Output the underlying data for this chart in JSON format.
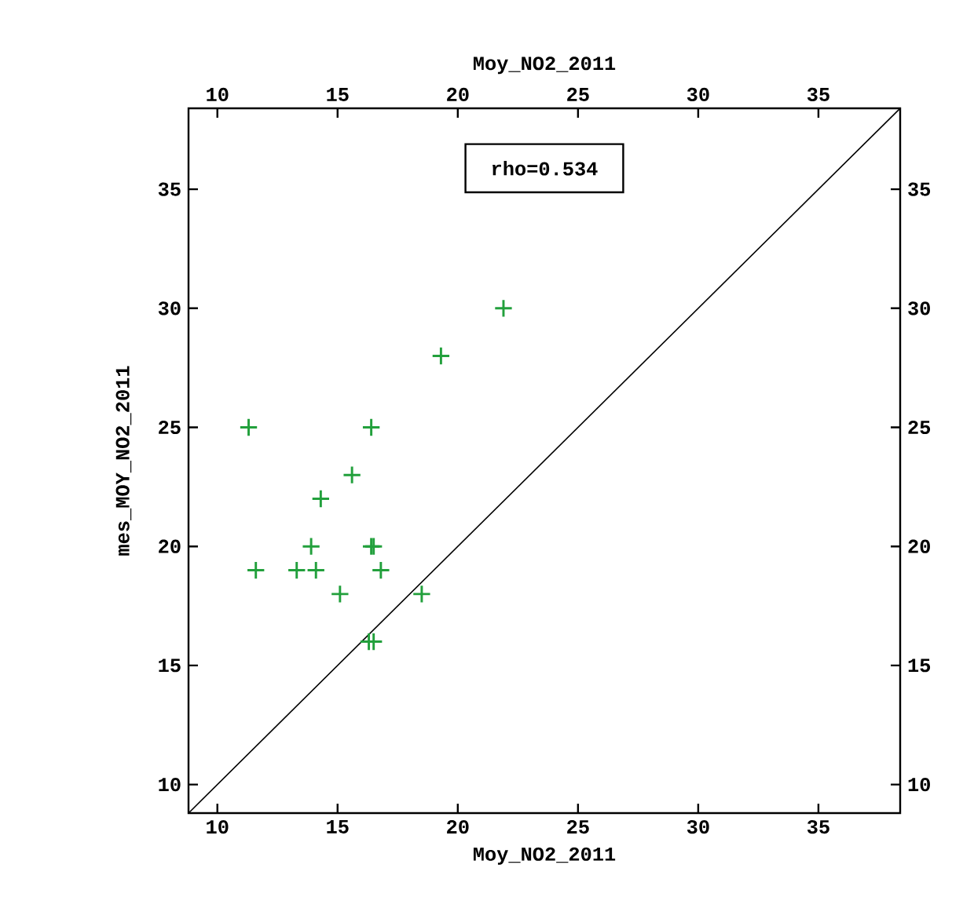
{
  "chart_data": {
    "type": "scatter",
    "xlabel": "Moy_NO2_2011",
    "x2label": "Moy_NO2_2011",
    "ylabel": "mes_MOY_NO2_2011",
    "annotations": [
      "rho=0.534"
    ],
    "xlim": [
      8.8,
      38.4
    ],
    "ylim": [
      8.8,
      38.4
    ],
    "x2lim": [
      8.8,
      38.4
    ],
    "y2lim": [
      8.8,
      38.4
    ],
    "xticks": [
      10,
      15,
      20,
      25,
      30,
      35
    ],
    "yticks": [
      10,
      15,
      20,
      25,
      30,
      35
    ],
    "x2ticks": [
      10,
      15,
      20,
      25,
      30,
      35
    ],
    "y2ticks": [
      10,
      15,
      20,
      25,
      30,
      35
    ],
    "grid": false,
    "marker": "cross",
    "series": [
      {
        "color": "#22a03c",
        "x": [
          21.9,
          19.3,
          11.3,
          16.4,
          15.6,
          14.3,
          13.9,
          16.4,
          16.5,
          11.6,
          13.3,
          14.1,
          16.8,
          15.1,
          18.5,
          16.3,
          16.5
        ],
        "values": [
          30,
          28,
          25,
          25,
          23,
          22,
          20,
          20,
          20,
          19,
          19,
          19,
          19,
          18,
          18,
          16,
          16
        ]
      },
      {
        "type": "line",
        "color": "#000000",
        "marker": "none",
        "x": [
          8.8,
          38.4
        ],
        "values": [
          8.8,
          38.4
        ]
      }
    ]
  }
}
